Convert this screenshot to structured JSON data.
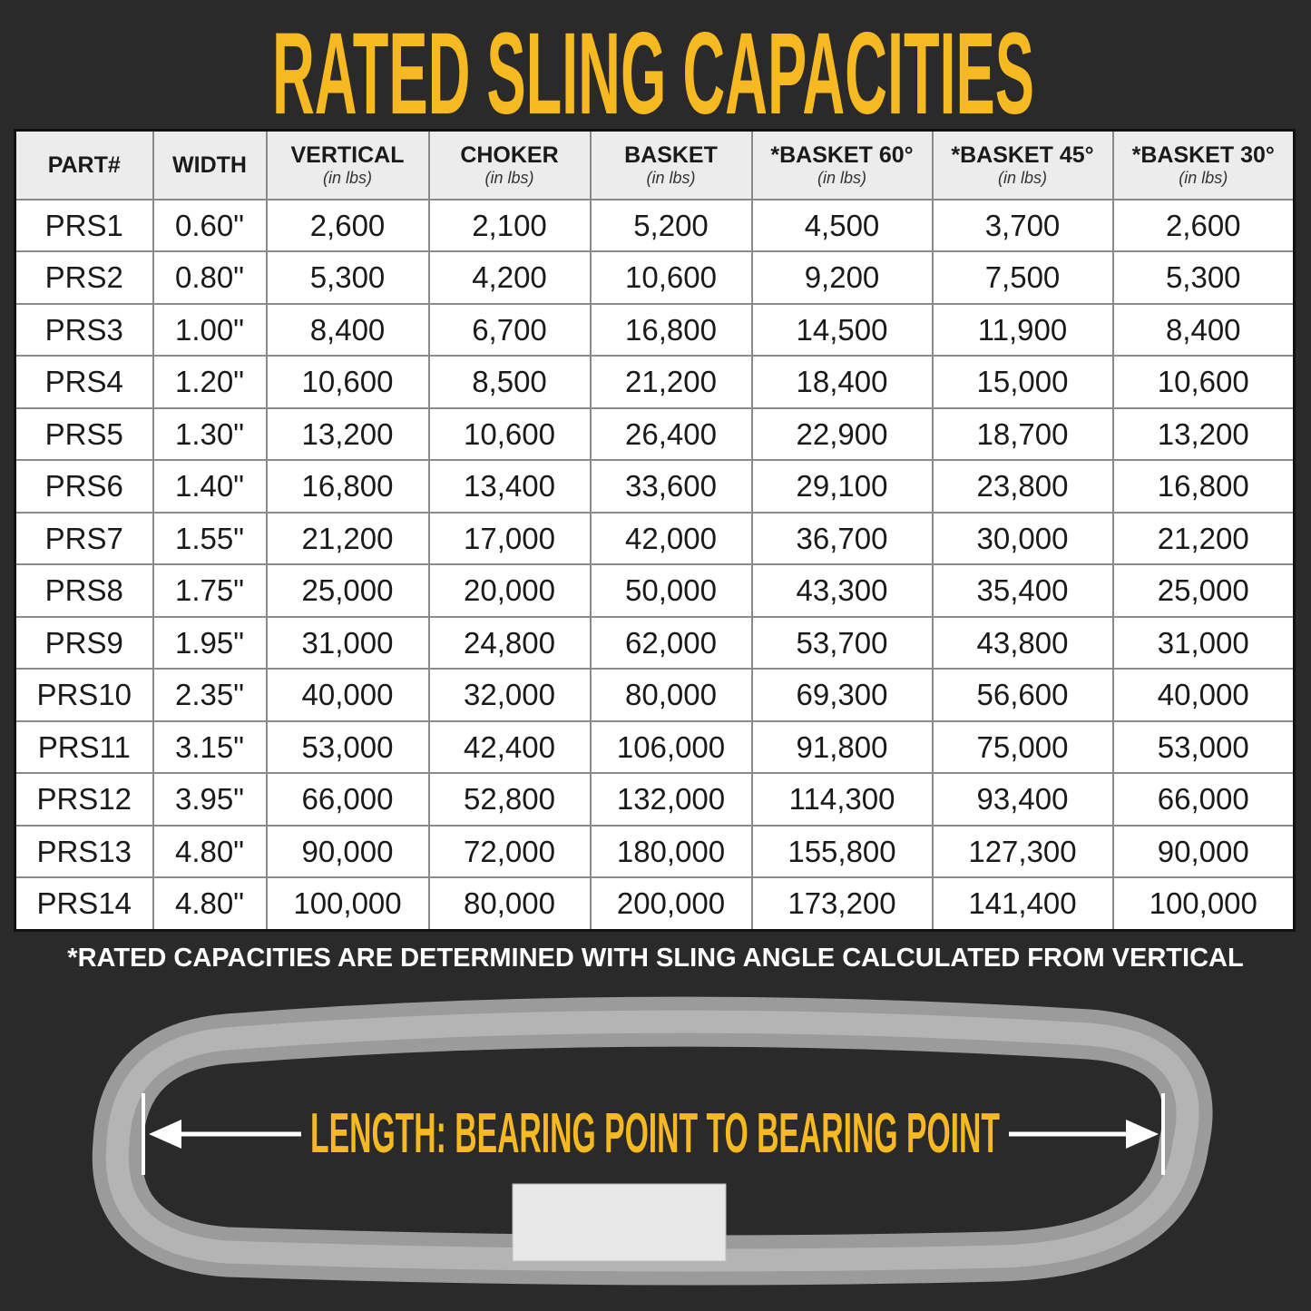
{
  "header": {
    "title": "RATED SLING CAPACITIES"
  },
  "table": {
    "headers": [
      {
        "label": "PART#"
      },
      {
        "label": "WIDTH"
      },
      {
        "label": "VERTICAL",
        "unit": "(in lbs)"
      },
      {
        "label": "CHOKER",
        "unit": "(in lbs)"
      },
      {
        "label": "BASKET",
        "unit": "(in lbs)"
      },
      {
        "label": "*BASKET 60°",
        "unit": "(in lbs)"
      },
      {
        "label": "*BASKET 45°",
        "unit": "(in lbs)"
      },
      {
        "label": "*BASKET 30°",
        "unit": "(in lbs)"
      }
    ],
    "rows": [
      [
        "PRS1",
        "0.60\"",
        "2,600",
        "2,100",
        "5,200",
        "4,500",
        "3,700",
        "2,600"
      ],
      [
        "PRS2",
        "0.80\"",
        "5,300",
        "4,200",
        "10,600",
        "9,200",
        "7,500",
        "5,300"
      ],
      [
        "PRS3",
        "1.00\"",
        "8,400",
        "6,700",
        "16,800",
        "14,500",
        "11,900",
        "8,400"
      ],
      [
        "PRS4",
        "1.20\"",
        "10,600",
        "8,500",
        "21,200",
        "18,400",
        "15,000",
        "10,600"
      ],
      [
        "PRS5",
        "1.30\"",
        "13,200",
        "10,600",
        "26,400",
        "22,900",
        "18,700",
        "13,200"
      ],
      [
        "PRS6",
        "1.40\"",
        "16,800",
        "13,400",
        "33,600",
        "29,100",
        "23,800",
        "16,800"
      ],
      [
        "PRS7",
        "1.55\"",
        "21,200",
        "17,000",
        "42,000",
        "36,700",
        "30,000",
        "21,200"
      ],
      [
        "PRS8",
        "1.75\"",
        "25,000",
        "20,000",
        "50,000",
        "43,300",
        "35,400",
        "25,000"
      ],
      [
        "PRS9",
        "1.95\"",
        "31,000",
        "24,800",
        "62,000",
        "53,700",
        "43,800",
        "31,000"
      ],
      [
        "PRS10",
        "2.35\"",
        "40,000",
        "32,000",
        "80,000",
        "69,300",
        "56,600",
        "40,000"
      ],
      [
        "PRS11",
        "3.15\"",
        "53,000",
        "42,400",
        "106,000",
        "91,800",
        "75,000",
        "53,000"
      ],
      [
        "PRS12",
        "3.95\"",
        "66,000",
        "52,800",
        "132,000",
        "114,300",
        "93,400",
        "66,000"
      ],
      [
        "PRS13",
        "4.80\"",
        "90,000",
        "72,000",
        "180,000",
        "155,800",
        "127,300",
        "90,000"
      ],
      [
        "PRS14",
        "4.80\"",
        "100,000",
        "80,000",
        "200,000",
        "173,200",
        "141,400",
        "100,000"
      ]
    ]
  },
  "footnote": "*RATED CAPACITIES ARE DETERMINED WITH SLING ANGLE CALCULATED FROM VERTICAL",
  "diagram": {
    "length_label": "LENGTH: BEARING POINT TO BEARING POINT"
  }
}
